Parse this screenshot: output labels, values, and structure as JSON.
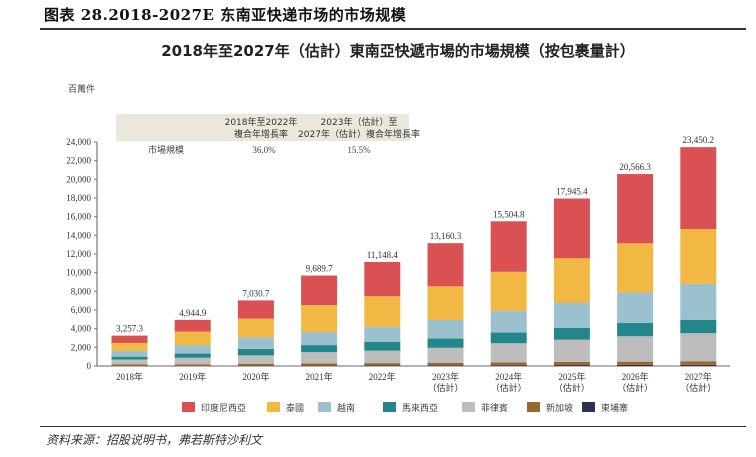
{
  "figure_title": "图表 28.2018-2027E 东南亚快递市场的市场规模",
  "source": "资料来源：招股说明书，弗若斯特沙利文",
  "chart_data": {
    "type": "bar",
    "stacked": true,
    "title": "2018年至2027年（估計）東南亞快遞市場的市場規模（按包裹量計）",
    "ylabel": "百萬件",
    "xlabel": "",
    "ylim": [
      0,
      24000
    ],
    "yticks": [
      "0",
      "2,000",
      "4,000",
      "6,000",
      "8,000",
      "10,000",
      "12,000",
      "14,000",
      "16,000",
      "18,000",
      "20,000",
      "22,000",
      "24,000"
    ],
    "grid": false,
    "legend_position": "bottom",
    "categories": [
      [
        "2018年"
      ],
      [
        "2019年"
      ],
      [
        "2020年"
      ],
      [
        "2021年"
      ],
      [
        "2022年"
      ],
      [
        "2023年",
        "（估計）"
      ],
      [
        "2024年",
        "（估計）"
      ],
      [
        "2025年",
        "（估計）"
      ],
      [
        "2026年",
        "（估計）"
      ],
      [
        "2027年",
        "（估計）"
      ]
    ],
    "totals": [
      3257.3,
      4944.9,
      7030.7,
      9689.7,
      11148.4,
      13160.3,
      15504.8,
      17945.4,
      20566.3,
      23450.2
    ],
    "total_labels": [
      "3,257.3",
      "4,944.9",
      "7,030.7",
      "9,689.7",
      "11,148.4",
      "13,160.3",
      "15,504.8",
      "17,945.4",
      "20,566.3",
      "23,450.2"
    ],
    "series": [
      {
        "name": "東埔寨",
        "color": "#2b3157",
        "values": [
          10,
          15,
          25,
          40,
          50,
          70,
          85,
          100,
          115,
          130
        ]
      },
      {
        "name": "新加坡",
        "color": "#98692b",
        "values": [
          150,
          170,
          220,
          240,
          260,
          280,
          300,
          330,
          350,
          380
        ]
      },
      {
        "name": "菲律賓",
        "color": "#bdbdbd",
        "values": [
          540,
          700,
          900,
          1200,
          1330,
          1600,
          2050,
          2390,
          2720,
          3000
        ]
      },
      {
        "name": "馬來西亞",
        "color": "#23868a",
        "values": [
          300,
          450,
          700,
          760,
          930,
          990,
          1150,
          1270,
          1420,
          1450
        ]
      },
      {
        "name": "越南",
        "color": "#9bc1cf",
        "values": [
          620,
          900,
          1230,
          1400,
          1620,
          2000,
          2350,
          2710,
          3280,
          3840
        ]
      },
      {
        "name": "泰國",
        "color": "#f2b844",
        "values": [
          850,
          1450,
          2000,
          2880,
          3280,
          3600,
          4160,
          4740,
          5260,
          5880
        ]
      },
      {
        "name": "印度尼西亞",
        "color": "#d95152",
        "values": [
          787.3,
          1259.9,
          1955.7,
          3169.7,
          3678.4,
          4620.3,
          5409.8,
          6405.4,
          7421.3,
          8770.2
        ]
      }
    ],
    "legend_order": [
      "印度尼西亞",
      "泰國",
      "越南",
      "馬來西亞",
      "菲律賓",
      "新加坡",
      "東埔寨"
    ],
    "cagr_table": {
      "headers": [
        [
          "2018年至2022年",
          "複合年增長率"
        ],
        [
          "2023年（估計）至",
          "2027年（估計）複合年增長率"
        ]
      ],
      "row_label": "市場規模",
      "values": [
        "36.0%",
        "15.5%"
      ]
    }
  }
}
